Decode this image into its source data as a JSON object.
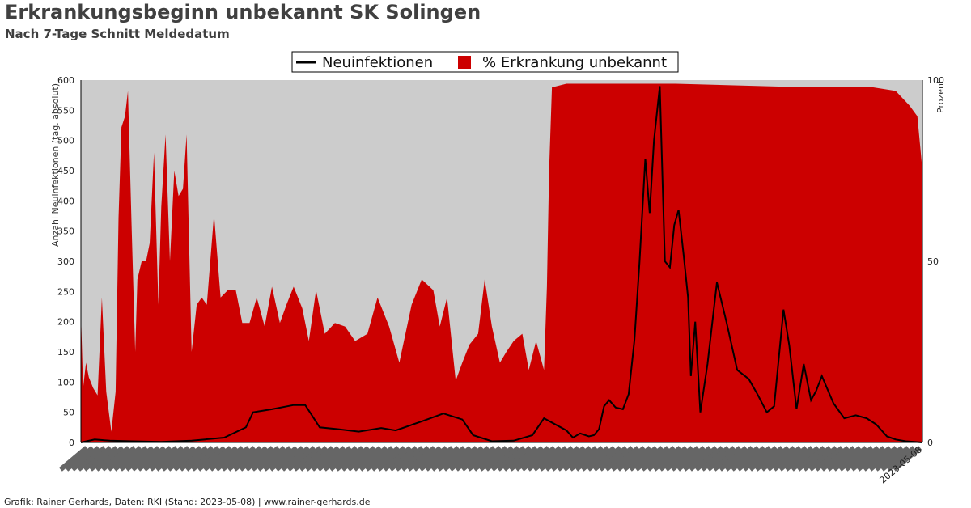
{
  "title": "Erkrankungsbeginn unbekannt SK Solingen",
  "subtitle": "Nach 7-Tage Schnitt Meldedatum",
  "footer": "Grafik: Rainer Gerhards, Daten: RKI (Stand: 2023-05-08) | www.rainer-gerhards.de",
  "colors": {
    "plot_bg": "#cccccc",
    "area": "#cc0000",
    "line": "#000000"
  },
  "chart_data": {
    "type": "line",
    "title": "Erkrankungsbeginn unbekannt SK Solingen",
    "subtitle": "Nach 7-Tage Schnitt Meldedatum",
    "ylabel": "Anzahl Neuinfektionen (tag. absolut)",
    "y2label": "Prozent",
    "ylim": [
      0,
      600
    ],
    "y2lim": [
      0,
      100
    ],
    "yticks": [
      0,
      50,
      100,
      150,
      200,
      250,
      300,
      350,
      400,
      450,
      500,
      550,
      600
    ],
    "y2ticks": [
      0,
      50,
      100
    ],
    "xlim": [
      "2020-03-01",
      "2023-05-08"
    ],
    "x_tick_note": "dense daily date labels, illegible except final",
    "x_last_tick": "2023-05-08",
    "legend": {
      "placement": "top-center",
      "entries": [
        "Neuinfektionen",
        "% Erkrankung unbekannt"
      ]
    },
    "grid": false,
    "series": [
      {
        "name": "Neuinfektionen",
        "axis": "left",
        "kind": "line",
        "color": "#000000",
        "x": [
          "2020-03-01",
          "2020-03-20",
          "2020-04-10",
          "2020-05-10",
          "2020-06-20",
          "2020-08-01",
          "2020-09-15",
          "2020-10-15",
          "2020-10-25",
          "2020-11-20",
          "2020-12-20",
          "2021-01-05",
          "2021-01-25",
          "2021-02-20",
          "2021-03-20",
          "2021-04-20",
          "2021-05-10",
          "2021-06-15",
          "2021-07-15",
          "2021-08-10",
          "2021-08-25",
          "2021-09-20",
          "2021-10-20",
          "2021-11-15",
          "2021-12-01",
          "2022-01-01",
          "2022-01-10",
          "2022-01-20",
          "2022-02-01",
          "2022-02-08",
          "2022-02-15",
          "2022-02-22",
          "2022-03-01",
          "2022-03-10",
          "2022-03-20",
          "2022-03-28",
          "2022-04-05",
          "2022-04-12",
          "2022-04-20",
          "2022-04-26",
          "2022-05-02",
          "2022-05-10",
          "2022-05-17",
          "2022-05-24",
          "2022-05-30",
          "2022-06-05",
          "2022-06-12",
          "2022-06-18",
          "2022-06-22",
          "2022-06-28",
          "2022-07-05",
          "2022-07-15",
          "2022-07-28",
          "2022-08-10",
          "2022-08-25",
          "2022-09-10",
          "2022-09-22",
          "2022-10-05",
          "2022-10-15",
          "2022-10-28",
          "2022-11-05",
          "2022-11-15",
          "2022-11-25",
          "2022-12-05",
          "2022-12-12",
          "2022-12-20",
          "2023-01-05",
          "2023-01-20",
          "2023-02-05",
          "2023-02-20",
          "2023-03-05",
          "2023-03-20",
          "2023-04-01",
          "2023-04-15",
          "2023-05-08"
        ],
        "values": [
          0,
          5,
          3,
          2,
          1,
          3,
          8,
          25,
          50,
          55,
          62,
          62,
          25,
          22,
          18,
          24,
          20,
          35,
          48,
          38,
          12,
          2,
          3,
          12,
          40,
          20,
          8,
          15,
          10,
          12,
          22,
          60,
          70,
          58,
          55,
          80,
          170,
          300,
          470,
          380,
          500,
          590,
          300,
          290,
          360,
          385,
          310,
          240,
          110,
          200,
          50,
          130,
          265,
          200,
          120,
          105,
          80,
          50,
          60,
          220,
          160,
          55,
          130,
          70,
          85,
          110,
          65,
          40,
          45,
          40,
          30,
          10,
          5,
          2,
          0
        ]
      },
      {
        "name": "% Erkrankung unbekannt",
        "axis": "right",
        "kind": "area",
        "color": "#cc0000",
        "x": [
          "2020-03-01",
          "2020-03-04",
          "2020-03-08",
          "2020-03-12",
          "2020-03-18",
          "2020-03-24",
          "2020-03-30",
          "2020-04-05",
          "2020-04-12",
          "2020-04-18",
          "2020-04-22",
          "2020-04-26",
          "2020-05-01",
          "2020-05-05",
          "2020-05-10",
          "2020-05-15",
          "2020-05-18",
          "2020-05-24",
          "2020-05-30",
          "2020-06-04",
          "2020-06-10",
          "2020-06-16",
          "2020-06-20",
          "2020-06-26",
          "2020-07-02",
          "2020-07-08",
          "2020-07-14",
          "2020-07-20",
          "2020-07-25",
          "2020-08-01",
          "2020-08-08",
          "2020-08-15",
          "2020-08-22",
          "2020-09-01",
          "2020-09-10",
          "2020-09-20",
          "2020-10-01",
          "2020-10-10",
          "2020-10-20",
          "2020-10-30",
          "2020-11-10",
          "2020-11-20",
          "2020-12-01",
          "2020-12-10",
          "2020-12-20",
          "2021-01-01",
          "2021-01-10",
          "2021-01-20",
          "2021-02-01",
          "2021-02-15",
          "2021-03-01",
          "2021-03-15",
          "2021-04-01",
          "2021-04-15",
          "2021-05-01",
          "2021-05-15",
          "2021-06-01",
          "2021-06-15",
          "2021-07-01",
          "2021-07-10",
          "2021-07-20",
          "2021-08-01",
          "2021-08-10",
          "2021-08-20",
          "2021-09-01",
          "2021-09-10",
          "2021-09-20",
          "2021-10-01",
          "2021-10-10",
          "2021-10-20",
          "2021-11-01",
          "2021-11-10",
          "2021-11-20",
          "2021-12-01",
          "2021-12-05",
          "2021-12-08",
          "2021-12-12",
          "2022-01-01",
          "2022-06-01",
          "2022-12-01",
          "2023-03-01",
          "2023-04-01",
          "2023-04-20",
          "2023-05-01",
          "2023-05-08"
        ],
        "values": [
          36,
          15,
          22,
          18,
          15,
          13,
          40,
          14,
          3,
          14,
          62,
          87,
          90,
          97,
          60,
          25,
          45,
          50,
          50,
          55,
          80,
          38,
          65,
          85,
          50,
          75,
          68,
          70,
          85,
          25,
          38,
          40,
          38,
          63,
          40,
          42,
          42,
          33,
          33,
          40,
          32,
          43,
          33,
          38,
          43,
          37,
          28,
          42,
          30,
          33,
          32,
          28,
          30,
          40,
          32,
          22,
          38,
          45,
          42,
          32,
          40,
          17,
          22,
          27,
          30,
          45,
          32,
          22,
          25,
          28,
          30,
          20,
          28,
          20,
          43,
          75,
          98,
          99,
          99,
          98,
          98,
          97,
          93,
          90,
          75
        ]
      }
    ]
  }
}
